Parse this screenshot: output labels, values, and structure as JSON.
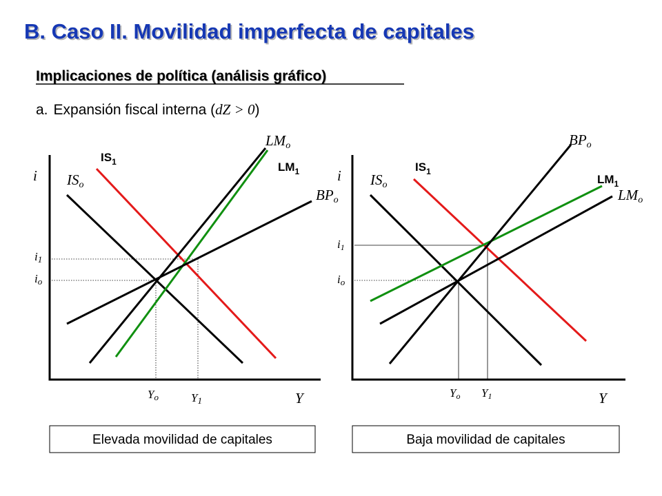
{
  "header": {
    "title": "B. Caso II. Movilidad imperfecta de capitales",
    "subtitle": "Implicaciones de política (análisis gráfico)",
    "item": {
      "marker": "a.",
      "text": "Expansión fiscal interna (",
      "condition": "dZ > 0",
      "close": ")"
    }
  },
  "panels": [
    {
      "y_axis": "i",
      "x_axis": "Y",
      "curves": {
        "IS_o": {
          "main": "IS",
          "sub": "o"
        },
        "IS_1": {
          "main": "IS",
          "sub": "1"
        },
        "LM_o": {
          "main": "LM",
          "sub": "o"
        },
        "LM_1": {
          "main": "LM",
          "sub": "1"
        },
        "BP_o": {
          "main": "BP",
          "sub": "o"
        }
      },
      "ticks": {
        "i_o": {
          "main": "i",
          "sub": "o"
        },
        "i_1": {
          "main": "i",
          "sub": "1"
        },
        "Y_o": {
          "main": "Y",
          "sub": "o"
        },
        "Y_1": {
          "main": "Y",
          "sub": "1"
        }
      },
      "caption": "Elevada movilidad de capitales"
    },
    {
      "y_axis": "i",
      "x_axis": "Y",
      "curves": {
        "IS_o": {
          "main": "IS",
          "sub": "o"
        },
        "IS_1": {
          "main": "IS",
          "sub": "1"
        },
        "LM_o": {
          "main": "LM",
          "sub": "o"
        },
        "LM_1": {
          "main": "LM",
          "sub": "1"
        },
        "BP_o": {
          "main": "BP",
          "sub": "o"
        }
      },
      "ticks": {
        "i_o": {
          "main": "i",
          "sub": "o"
        },
        "i_1": {
          "main": "i",
          "sub": "1"
        },
        "Y_o": {
          "main": "Y",
          "sub": "o"
        },
        "Y_1": {
          "main": "Y",
          "sub": "1"
        }
      },
      "caption": "Baja movilidad de capitales"
    }
  ]
}
